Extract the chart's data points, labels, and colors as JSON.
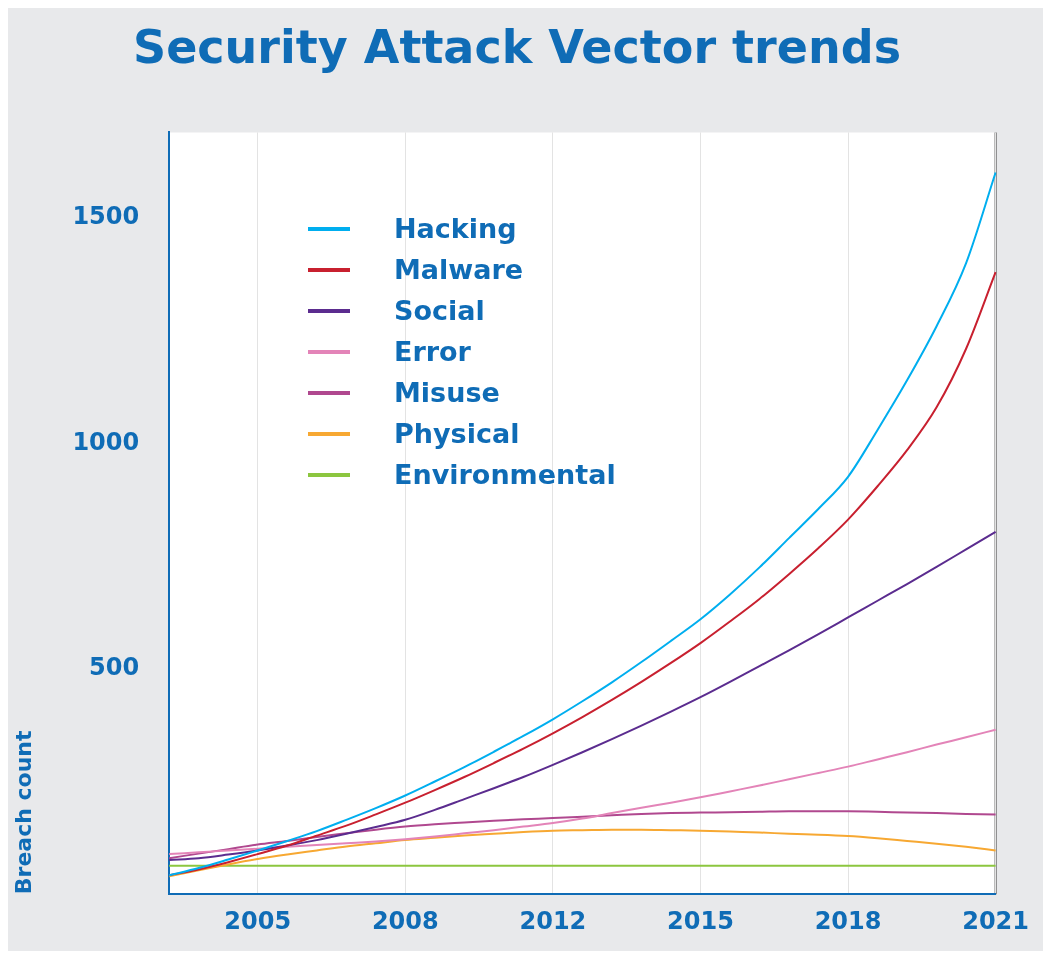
{
  "chart_data": {
    "type": "line",
    "title": "Security Attack Vector trends",
    "ylabel": "Breach count",
    "categories": [
      null,
      null,
      null,
      "2005",
      null,
      null,
      null,
      null,
      "2008",
      null,
      null,
      null,
      null,
      "2012",
      null,
      null,
      null,
      null,
      "2015",
      null,
      null,
      null,
      null,
      "2018",
      null,
      null,
      null,
      null,
      "2021"
    ],
    "series": [
      {
        "name": "Hacking",
        "color": "#00aeef",
        "values": [
          42,
          58,
          77,
          97,
          118,
          140,
          165,
          191,
          219,
          250,
          282,
          316,
          351,
          388,
          428,
          470,
          515,
          562,
          610,
          665,
          725,
          790,
          855,
          926,
          1030,
          1140,
          1260,
          1400,
          1601
        ]
      },
      {
        "name": "Malware",
        "color": "#c8202f",
        "values": [
          42,
          55,
          71,
          89,
          108,
          130,
          152,
          177,
          203,
          231,
          260,
          291,
          323,
          357,
          393,
          431,
          471,
          513,
          557,
          605,
          655,
          710,
          768,
          831,
          905,
          985,
          1080,
          1210,
          1380
        ]
      },
      {
        "name": "Social",
        "color": "#5b2c8f",
        "values": [
          76,
          80,
          88,
          97,
          108,
          120,
          134,
          149,
          165,
          187,
          211,
          235,
          260,
          287,
          315,
          344,
          374,
          405,
          437,
          471,
          506,
          541,
          577,
          614,
          651,
          688,
          726,
          765,
          804
        ]
      },
      {
        "name": "Error",
        "color": "#e384b8",
        "values": [
          89,
          93,
          97,
          101,
          105,
          109,
          113,
          117,
          122,
          128,
          135,
          142,
          150,
          158,
          168,
          180,
          192,
          203,
          215,
          228,
          241,
          255,
          269,
          283,
          299,
          315,
          332,
          348,
          365
        ]
      },
      {
        "name": "Misuse",
        "color": "#b0488f",
        "values": [
          80,
          90,
          100,
          110,
          118,
          127,
          135,
          143,
          150,
          155,
          159,
          163,
          166,
          169,
          172,
          175,
          178,
          180,
          181,
          182,
          183,
          184,
          184,
          184,
          183,
          181,
          180,
          178,
          177
        ]
      },
      {
        "name": "Physical",
        "color": "#f7a832",
        "values": [
          40,
          53,
          66,
          78,
          88,
          97,
          106,
          113,
          120,
          125,
          130,
          134,
          138,
          141,
          142,
          143,
          143,
          142,
          141,
          139,
          137,
          134,
          132,
          129,
          124,
          118,
          112,
          105,
          97
        ]
      },
      {
        "name": "Environmental",
        "color": "#8cc63f",
        "values": [
          63,
          63,
          63,
          63,
          63,
          63,
          63,
          63,
          63,
          63,
          63,
          63,
          63,
          63,
          63,
          63,
          63,
          63,
          63,
          63,
          63,
          63,
          63,
          63,
          63,
          63,
          63,
          63,
          63
        ]
      }
    ],
    "ylim": [
      0,
      1690
    ],
    "yticks": [
      500,
      1000,
      1500
    ],
    "grid": "x",
    "legend": "top left",
    "marker": "none",
    "line_style": "solid"
  }
}
